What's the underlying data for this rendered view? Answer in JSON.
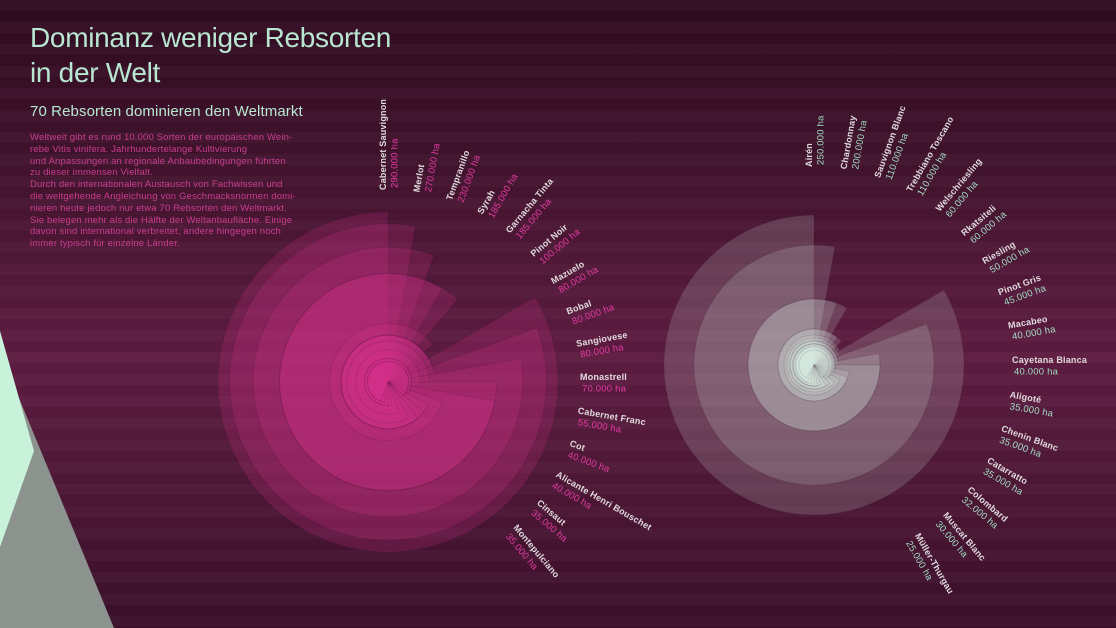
{
  "header": {
    "title_line1": "Dominanz weniger Rebsorten",
    "title_line2": "in der Welt",
    "subtitle": "70 Rebsorten dominieren den Weltmarkt",
    "intro_text": "Weltweit gibt es rund 10.000 Sorten der europäischen Wein-\nrebe Vitis vinifera. Jahrhundertelange Kultivierung\nund Anpassungen an regionale Anbaubedingungen führten\nzu dieser immensen Vielfalt.\nDurch den internationalen Austausch von Fachwissen und\ndie weitgehende Angleichung von Geschmacksnormen domi-\nnieren heute jedoch nur etwa 70 Rebsorten den Weltmarkt.\nSie belegen mehr als die Hälfte der Weltanbaufläche. Einige\ndavon sind international verbreitet, andere hingegen noch\nimmer typisch für einzelne Länder."
  },
  "colors": {
    "background_top": "#300c21",
    "background_mid": "#5d1c41",
    "background_bottom": "#3a0f2a",
    "title": "#b9e6d1",
    "intro": "#c83e8e",
    "label_name": "#e0dadd",
    "red_fill": "#d8308c",
    "red_value": "#e43aa2",
    "white_fill": "#ddf3e6",
    "white_value": "#a2dcc2",
    "mint_shape": "#c9f2da",
    "grey_shape": "#8c938e"
  },
  "chart_data": [
    {
      "type": "radial-sector",
      "group": "left",
      "unit": "ha",
      "legend_position": "labels-radiating-clockwise-from-top",
      "series": [
        {
          "name": "Cabernet Sauvignon",
          "value": 290000,
          "label": "290.000 ha"
        },
        {
          "name": "Merlot",
          "value": 270000,
          "label": "270.000 ha"
        },
        {
          "name": "Tempranillo",
          "value": 230000,
          "label": "230.000 ha"
        },
        {
          "name": "Syrah",
          "value": 185000,
          "label": "185.000 ha"
        },
        {
          "name": "Garnacha Tinta",
          "value": 185000,
          "label": "185.000 ha"
        },
        {
          "name": "Pinot Noir",
          "value": 100000,
          "label": "100.000 ha"
        },
        {
          "name": "Mazuelo",
          "value": 80000,
          "label": "80.000 ha"
        },
        {
          "name": "Bobal",
          "value": 80000,
          "label": "80.000 ha"
        },
        {
          "name": "Sangiovese",
          "value": 80000,
          "label": "80.000 ha"
        },
        {
          "name": "Monastrell",
          "value": 70000,
          "label": "70.000 ha"
        },
        {
          "name": "Cabernet Franc",
          "value": 55000,
          "label": "55.000 ha"
        },
        {
          "name": "Cot",
          "value": 40000,
          "label": "40.000 ha"
        },
        {
          "name": "Alicante Henri Bouschet",
          "value": 40000,
          "label": "40.000 ha"
        },
        {
          "name": "Cinsaut",
          "value": 35000,
          "label": "35.000 ha"
        },
        {
          "name": "Montepulciano",
          "value": 35000,
          "label": "35.000 ha"
        }
      ]
    },
    {
      "type": "radial-sector",
      "group": "right",
      "unit": "ha",
      "legend_position": "labels-radiating-clockwise-from-top",
      "series": [
        {
          "name": "Airén",
          "value": 250000,
          "label": "250.000 ha"
        },
        {
          "name": "Chardonnay",
          "value": 200000,
          "label": "200.000 ha"
        },
        {
          "name": "Sauvignon Blanc",
          "value": 110000,
          "label": "110.000 ha"
        },
        {
          "name": "Trebbiano Toscano",
          "value": 110000,
          "label": "110.000 ha"
        },
        {
          "name": "Welschriesling",
          "value": 60000,
          "label": "60.000 ha"
        },
        {
          "name": "Rkatsiteli",
          "value": 60000,
          "label": "60.000 ha"
        },
        {
          "name": "Riesling",
          "value": 50000,
          "label": "50.000 ha"
        },
        {
          "name": "Pinot Gris",
          "value": 45000,
          "label": "45.000 ha"
        },
        {
          "name": "Macabeo",
          "value": 40000,
          "label": "40.000 ha"
        },
        {
          "name": "Cayetana Blanca",
          "value": 40000,
          "label": "40.000 ha"
        },
        {
          "name": "Aligoté",
          "value": 35000,
          "label": "35.000 ha"
        },
        {
          "name": "Chenin Blanc",
          "value": 35000,
          "label": "35.000 ha"
        },
        {
          "name": "Catarratto",
          "value": 35000,
          "label": "35.000 ha"
        },
        {
          "name": "Colombard",
          "value": 32000,
          "label": "32.000 ha"
        },
        {
          "name": "Muscat Blanc",
          "value": 30000,
          "label": "30.000 ha"
        },
        {
          "name": "Müller-Thurgau",
          "value": 25000,
          "label": "25.000 ha"
        }
      ]
    }
  ]
}
